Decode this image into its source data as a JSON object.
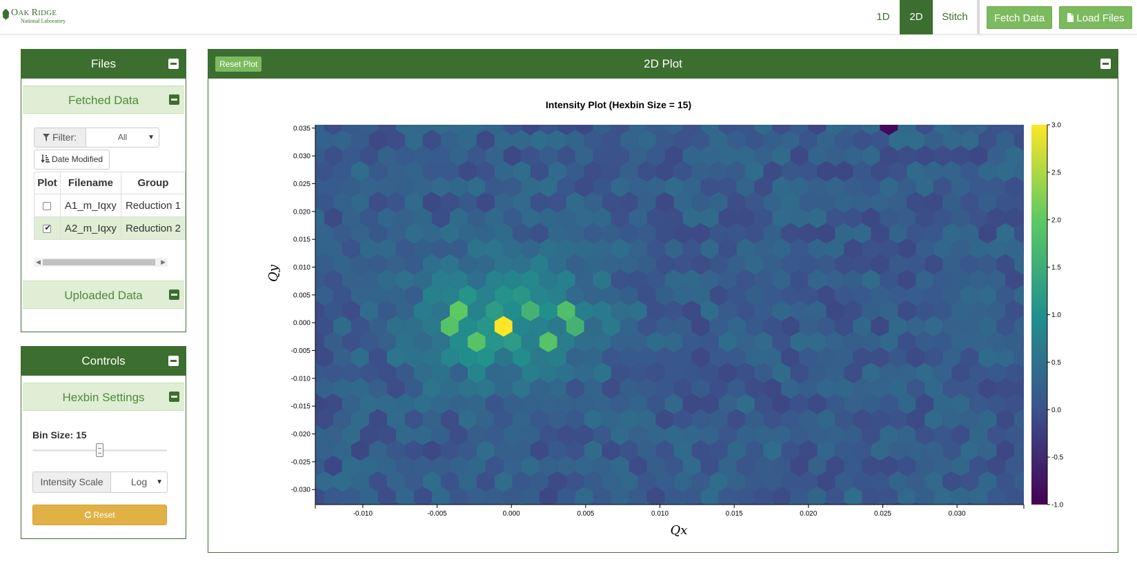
{
  "navbar": {
    "logo_line1_big": "O",
    "logo_line1_rest": "AK ",
    "logo_line1_big2": "R",
    "logo_line1_rest2": "IDGE",
    "logo_line2": "National Laboratory",
    "tabs": [
      {
        "label": "1D",
        "active": false
      },
      {
        "label": "2D",
        "active": true
      },
      {
        "label": "Stitch",
        "active": false
      }
    ],
    "fetch_button": "Fetch Data",
    "load_button": "Load Files",
    "load_icon": "file-icon"
  },
  "files_panel": {
    "title": "Files",
    "fetched": {
      "title": "Fetched Data",
      "filter_label": "Filter:",
      "filter_value": "All",
      "sort_label": "Date Modified",
      "columns": [
        "Plot",
        "Filename",
        "Group"
      ],
      "rows": [
        {
          "checked": false,
          "filename": "A1_m_Iqxy",
          "group": "Reduction 1"
        },
        {
          "checked": true,
          "filename": "A2_m_Iqxy",
          "group": "Reduction 2"
        }
      ]
    },
    "uploaded": {
      "title": "Uploaded Data"
    }
  },
  "controls_panel": {
    "title": "Controls",
    "hexbin": {
      "title": "Hexbin Settings",
      "bin_size_label": "Bin Size: 15",
      "bin_size_value": 15,
      "intensity_label": "Intensity Scale",
      "intensity_value": "Log",
      "reset_label": "Reset"
    }
  },
  "plot_panel": {
    "title": "2D Plot",
    "reset_plot_label": "Reset Plot"
  },
  "chart_data": {
    "type": "heatmap",
    "subtype": "hexbin",
    "title": "Intensity Plot (Hexbin Size = 15)",
    "xlabel": "Qx",
    "ylabel": "Qy",
    "xlim": [
      -0.0132,
      0.0345
    ],
    "ylim": [
      -0.0327,
      0.0356
    ],
    "xticks": [
      "-0.010",
      "-0.005",
      "0.000",
      "0.005",
      "0.010",
      "0.015",
      "0.020",
      "0.025",
      "0.030"
    ],
    "xtick_values": [
      -0.01,
      -0.005,
      0.0,
      0.005,
      0.01,
      0.015,
      0.02,
      0.025,
      0.03
    ],
    "yticks": [
      "0.035",
      "0.030",
      "0.025",
      "0.020",
      "0.015",
      "0.010",
      "0.005",
      "0.000",
      "-0.005",
      "-0.010",
      "-0.015",
      "-0.020",
      "-0.025",
      "-0.030"
    ],
    "ytick_values": [
      0.035,
      0.03,
      0.025,
      0.02,
      0.015,
      0.01,
      0.005,
      0.0,
      -0.005,
      -0.01,
      -0.015,
      -0.02,
      -0.025,
      -0.03
    ],
    "colorbar_ticks": [
      "3.0",
      "2.5",
      "2.0",
      "1.5",
      "1.0",
      "0.5",
      "0.0",
      "-0.5",
      "-1.0"
    ],
    "colorbar_range": [
      -1.0,
      3.0
    ],
    "colorscale": [
      "#440154",
      "#3b528b",
      "#21908d",
      "#5dc963",
      "#fde725"
    ],
    "background_level": 0.0,
    "hot_spots": [
      {
        "qx": -0.0006,
        "qy": 0.0,
        "value": 3.0
      },
      {
        "qx": -0.0036,
        "qy": 0.0026,
        "value": 2.0
      },
      {
        "qx": -0.0036,
        "qy": -0.0005,
        "value": 1.9
      },
      {
        "qx": -0.0024,
        "qy": -0.0028,
        "value": 1.9
      },
      {
        "qx": 0.0012,
        "qy": 0.0026,
        "value": 1.6
      },
      {
        "qx": 0.0024,
        "qy": -0.0028,
        "value": 1.9
      },
      {
        "qx": 0.0036,
        "qy": 0.0026,
        "value": 1.8
      },
      {
        "qx": 0.0048,
        "qy": -0.0005,
        "value": 1.6
      },
      {
        "qx": 0.025,
        "qy": 0.035,
        "value": -0.9
      }
    ]
  }
}
